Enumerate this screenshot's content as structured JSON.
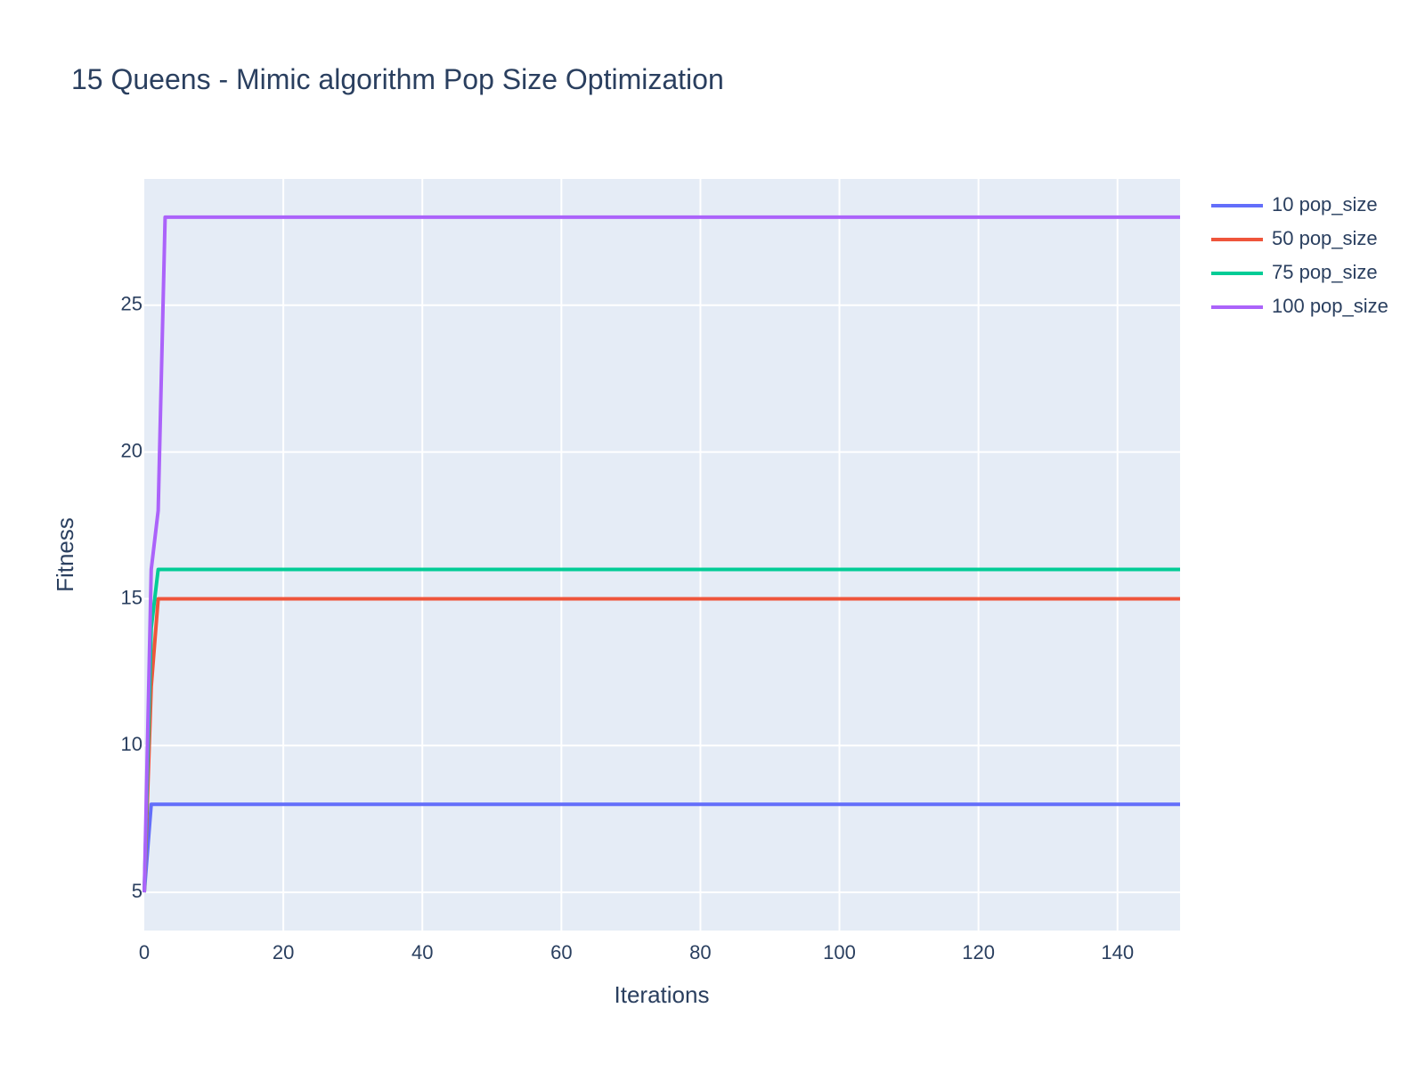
{
  "chart_data": {
    "type": "line",
    "title": "15 Queens - Mimic algorithm Pop Size Optimization",
    "xlabel": "Iterations",
    "ylabel": "Fitness",
    "xlim": [
      0,
      149
    ],
    "ylim": [
      3.7,
      29.3
    ],
    "xticks": [
      0,
      20,
      40,
      60,
      80,
      100,
      120,
      140
    ],
    "yticks": [
      5,
      10,
      15,
      20,
      25
    ],
    "grid": true,
    "legend_position": "top-right outside",
    "plot_bg": "#e5ecf6",
    "series": [
      {
        "name": "10 pop_size",
        "color": "#636efa",
        "points": [
          [
            0,
            5
          ],
          [
            1,
            8
          ],
          [
            149,
            8
          ]
        ]
      },
      {
        "name": "50 pop_size",
        "color": "#ef553b",
        "points": [
          [
            0,
            5
          ],
          [
            1,
            12
          ],
          [
            2,
            15
          ],
          [
            149,
            15
          ]
        ]
      },
      {
        "name": "75 pop_size",
        "color": "#00cc96",
        "points": [
          [
            0,
            5
          ],
          [
            1,
            14
          ],
          [
            2,
            16
          ],
          [
            149,
            16
          ]
        ]
      },
      {
        "name": "100 pop_size",
        "color": "#ab63fa",
        "points": [
          [
            0,
            5
          ],
          [
            1,
            16
          ],
          [
            2,
            18
          ],
          [
            3,
            28
          ],
          [
            149,
            28
          ]
        ]
      }
    ]
  }
}
